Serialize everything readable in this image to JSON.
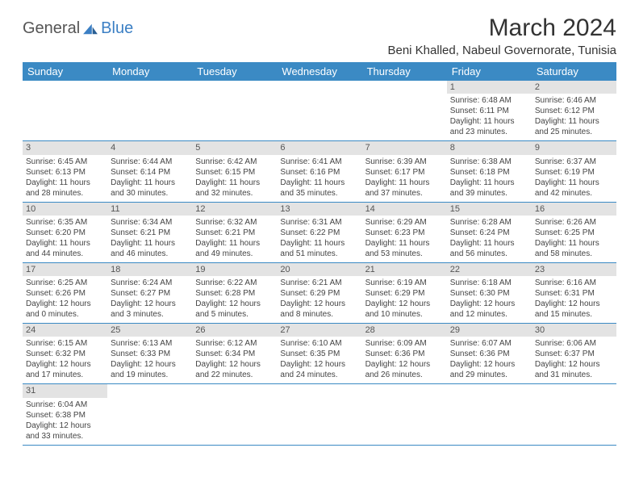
{
  "logo": {
    "part1": "General",
    "part2": "Blue"
  },
  "title": "March 2024",
  "location": "Beni Khalled, Nabeul Governorate, Tunisia",
  "header_color": "#3b8ac4",
  "daynum_bg": "#e3e3e3",
  "border_color": "#3b8ac4",
  "weekdays": [
    "Sunday",
    "Monday",
    "Tuesday",
    "Wednesday",
    "Thursday",
    "Friday",
    "Saturday"
  ],
  "first_weekday_index": 5,
  "days": [
    {
      "n": 1,
      "sunrise": "6:48 AM",
      "sunset": "6:11 PM",
      "dl_h": 11,
      "dl_m": 23
    },
    {
      "n": 2,
      "sunrise": "6:46 AM",
      "sunset": "6:12 PM",
      "dl_h": 11,
      "dl_m": 25
    },
    {
      "n": 3,
      "sunrise": "6:45 AM",
      "sunset": "6:13 PM",
      "dl_h": 11,
      "dl_m": 28
    },
    {
      "n": 4,
      "sunrise": "6:44 AM",
      "sunset": "6:14 PM",
      "dl_h": 11,
      "dl_m": 30
    },
    {
      "n": 5,
      "sunrise": "6:42 AM",
      "sunset": "6:15 PM",
      "dl_h": 11,
      "dl_m": 32
    },
    {
      "n": 6,
      "sunrise": "6:41 AM",
      "sunset": "6:16 PM",
      "dl_h": 11,
      "dl_m": 35
    },
    {
      "n": 7,
      "sunrise": "6:39 AM",
      "sunset": "6:17 PM",
      "dl_h": 11,
      "dl_m": 37
    },
    {
      "n": 8,
      "sunrise": "6:38 AM",
      "sunset": "6:18 PM",
      "dl_h": 11,
      "dl_m": 39
    },
    {
      "n": 9,
      "sunrise": "6:37 AM",
      "sunset": "6:19 PM",
      "dl_h": 11,
      "dl_m": 42
    },
    {
      "n": 10,
      "sunrise": "6:35 AM",
      "sunset": "6:20 PM",
      "dl_h": 11,
      "dl_m": 44
    },
    {
      "n": 11,
      "sunrise": "6:34 AM",
      "sunset": "6:21 PM",
      "dl_h": 11,
      "dl_m": 46
    },
    {
      "n": 12,
      "sunrise": "6:32 AM",
      "sunset": "6:21 PM",
      "dl_h": 11,
      "dl_m": 49
    },
    {
      "n": 13,
      "sunrise": "6:31 AM",
      "sunset": "6:22 PM",
      "dl_h": 11,
      "dl_m": 51
    },
    {
      "n": 14,
      "sunrise": "6:29 AM",
      "sunset": "6:23 PM",
      "dl_h": 11,
      "dl_m": 53
    },
    {
      "n": 15,
      "sunrise": "6:28 AM",
      "sunset": "6:24 PM",
      "dl_h": 11,
      "dl_m": 56
    },
    {
      "n": 16,
      "sunrise": "6:26 AM",
      "sunset": "6:25 PM",
      "dl_h": 11,
      "dl_m": 58
    },
    {
      "n": 17,
      "sunrise": "6:25 AM",
      "sunset": "6:26 PM",
      "dl_h": 12,
      "dl_m": 0
    },
    {
      "n": 18,
      "sunrise": "6:24 AM",
      "sunset": "6:27 PM",
      "dl_h": 12,
      "dl_m": 3
    },
    {
      "n": 19,
      "sunrise": "6:22 AM",
      "sunset": "6:28 PM",
      "dl_h": 12,
      "dl_m": 5
    },
    {
      "n": 20,
      "sunrise": "6:21 AM",
      "sunset": "6:29 PM",
      "dl_h": 12,
      "dl_m": 8
    },
    {
      "n": 21,
      "sunrise": "6:19 AM",
      "sunset": "6:29 PM",
      "dl_h": 12,
      "dl_m": 10
    },
    {
      "n": 22,
      "sunrise": "6:18 AM",
      "sunset": "6:30 PM",
      "dl_h": 12,
      "dl_m": 12
    },
    {
      "n": 23,
      "sunrise": "6:16 AM",
      "sunset": "6:31 PM",
      "dl_h": 12,
      "dl_m": 15
    },
    {
      "n": 24,
      "sunrise": "6:15 AM",
      "sunset": "6:32 PM",
      "dl_h": 12,
      "dl_m": 17
    },
    {
      "n": 25,
      "sunrise": "6:13 AM",
      "sunset": "6:33 PM",
      "dl_h": 12,
      "dl_m": 19
    },
    {
      "n": 26,
      "sunrise": "6:12 AM",
      "sunset": "6:34 PM",
      "dl_h": 12,
      "dl_m": 22
    },
    {
      "n": 27,
      "sunrise": "6:10 AM",
      "sunset": "6:35 PM",
      "dl_h": 12,
      "dl_m": 24
    },
    {
      "n": 28,
      "sunrise": "6:09 AM",
      "sunset": "6:36 PM",
      "dl_h": 12,
      "dl_m": 26
    },
    {
      "n": 29,
      "sunrise": "6:07 AM",
      "sunset": "6:36 PM",
      "dl_h": 12,
      "dl_m": 29
    },
    {
      "n": 30,
      "sunrise": "6:06 AM",
      "sunset": "6:37 PM",
      "dl_h": 12,
      "dl_m": 31
    },
    {
      "n": 31,
      "sunrise": "6:04 AM",
      "sunset": "6:38 PM",
      "dl_h": 12,
      "dl_m": 33
    }
  ]
}
